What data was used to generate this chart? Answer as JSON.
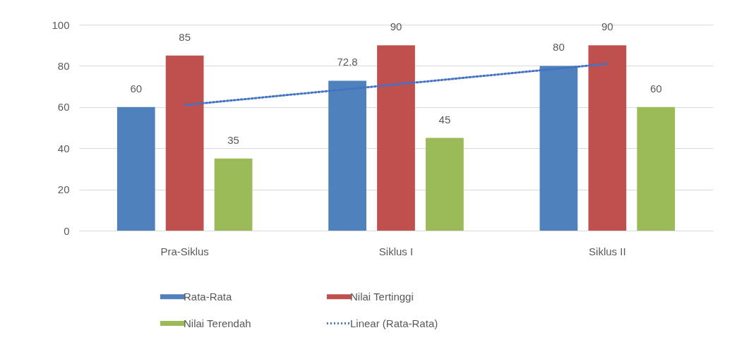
{
  "chart_data": {
    "type": "bar",
    "categories": [
      "Pra-Siklus",
      "Siklus I",
      "Siklus II"
    ],
    "ylim": [
      0,
      100
    ],
    "yticks": [
      0,
      20,
      40,
      60,
      80,
      100
    ],
    "grid": "y",
    "legend": "bottom",
    "series": [
      {
        "name": "Rata-Rata",
        "color": "#4f81bd",
        "values": [
          60,
          72.8,
          80
        ],
        "value_labels": [
          "60",
          "72.8",
          "80"
        ]
      },
      {
        "name": "Nilai Tertinggi",
        "color": "#c0504d",
        "values": [
          85,
          90,
          90
        ],
        "value_labels": [
          "85",
          "90",
          "90"
        ]
      },
      {
        "name": "Nilai Terendah",
        "color": "#9bbb59",
        "values": [
          35,
          45,
          60
        ],
        "value_labels": [
          "35",
          "45",
          "60"
        ]
      },
      {
        "name": "Linear (Rata-Rata)",
        "type": "line",
        "color": "#4472c4",
        "x": [
          "Pra-Siklus",
          "Siklus I",
          "Siklus II"
        ],
        "values": [
          61,
          71,
          81
        ],
        "line_style": "dotted",
        "marker": "none"
      }
    ]
  }
}
